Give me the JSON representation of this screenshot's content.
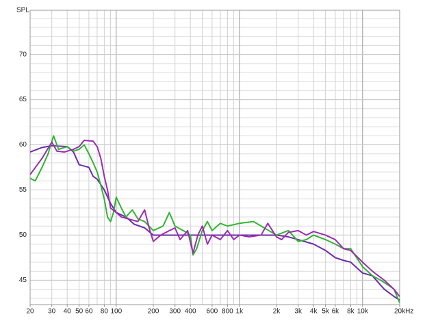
{
  "chart_data": {
    "type": "line",
    "y_label": "SPL",
    "log_x": true,
    "grid": true,
    "xlim": [
      20,
      20000
    ],
    "ylim": [
      42.3,
      74.9
    ],
    "xticks": [
      20,
      30,
      40,
      50,
      60,
      80,
      100,
      200,
      300,
      400,
      600,
      800,
      {
        "value": 1000,
        "label": "1k"
      },
      {
        "value": 2000,
        "label": "2k"
      },
      {
        "value": 3000,
        "label": "3k"
      },
      {
        "value": 4000,
        "label": "4k"
      },
      {
        "value": 5000,
        "label": "5k"
      },
      {
        "value": 6000,
        "label": "6k"
      },
      {
        "value": 8000,
        "label": "8k"
      },
      {
        "value": 10000,
        "label": "10k"
      },
      {
        "value": 20000,
        "label": "20kHz"
      }
    ],
    "yticks": [
      45,
      50,
      55,
      60,
      65,
      70
    ],
    "series": [
      {
        "color": "#6a2caa",
        "x": [
          20,
          25,
          30,
          40,
          45,
          50,
          60,
          65,
          70,
          80,
          90,
          100,
          120,
          140,
          170,
          200,
          1000,
          2000,
          2500,
          3000,
          4000,
          5000,
          6000,
          7000,
          8000,
          10000,
          12000,
          15000,
          18000,
          20000
        ],
        "values": [
          59.2,
          59.7,
          59.9,
          59.8,
          59.2,
          57.8,
          57.5,
          56.5,
          56.2,
          55,
          53.5,
          52.5,
          52,
          51.2,
          50.8,
          50,
          50,
          50,
          49.8,
          49.5,
          49,
          48.3,
          47.5,
          47.2,
          47,
          45.8,
          45.5,
          44,
          43.2,
          42.8
        ]
      },
      {
        "color": "#2fb52f",
        "x": [
          20,
          22,
          25,
          28,
          31,
          34,
          40,
          45,
          50,
          55,
          60,
          65,
          70,
          75,
          80,
          85,
          90,
          95,
          100,
          110,
          120,
          135,
          150,
          170,
          200,
          240,
          270,
          300,
          350,
          400,
          420,
          450,
          500,
          550,
          600,
          700,
          800,
          1000,
          1300,
          1500,
          2000,
          2500,
          3000,
          3500,
          4000,
          5000,
          6000,
          7000,
          8000,
          10000,
          12000,
          14000,
          16000,
          18000,
          20000
        ],
        "values": [
          56.3,
          56,
          57.5,
          59,
          61,
          59.5,
          59.8,
          59.3,
          59.5,
          60,
          59,
          58,
          57,
          55.5,
          54,
          52,
          51.5,
          52.5,
          54.2,
          53,
          52,
          52.8,
          51.8,
          51.5,
          50.5,
          51,
          52.5,
          51,
          50.5,
          50,
          47.8,
          48.5,
          50.5,
          51.5,
          50.5,
          51.3,
          51,
          51.3,
          51.5,
          51,
          50,
          50.5,
          49.3,
          49.5,
          50,
          49.5,
          49,
          48.5,
          48.5,
          46.5,
          45.5,
          45,
          44.5,
          44,
          42.5
        ]
      },
      {
        "color": "#9a2db0",
        "x": [
          20,
          25,
          30,
          33,
          38,
          45,
          50,
          55,
          65,
          70,
          75,
          80,
          85,
          90,
          100,
          110,
          125,
          150,
          170,
          185,
          200,
          230,
          270,
          300,
          330,
          380,
          420,
          460,
          500,
          550,
          600,
          700,
          800,
          900,
          1000,
          1200,
          1500,
          1700,
          2000,
          2200,
          2500,
          3000,
          3500,
          4000,
          5000,
          6000,
          7000,
          8000,
          10000,
          12000,
          15000,
          18000,
          20000
        ],
        "values": [
          56.7,
          58.5,
          60.3,
          59.3,
          59.2,
          59.5,
          59.8,
          60.5,
          60.4,
          59.8,
          58.5,
          56.5,
          55,
          53,
          52.5,
          52,
          51.8,
          51.5,
          52.8,
          50.8,
          49.3,
          50,
          50.5,
          50.8,
          49.5,
          50.5,
          48,
          50,
          51,
          49,
          50,
          49.5,
          50.5,
          49.5,
          50,
          49.8,
          50,
          51.3,
          49.8,
          49.5,
          50.3,
          50.5,
          50,
          50.4,
          50,
          49.5,
          48.5,
          48.3,
          47,
          46,
          45,
          44,
          43.2
        ]
      }
    ]
  }
}
